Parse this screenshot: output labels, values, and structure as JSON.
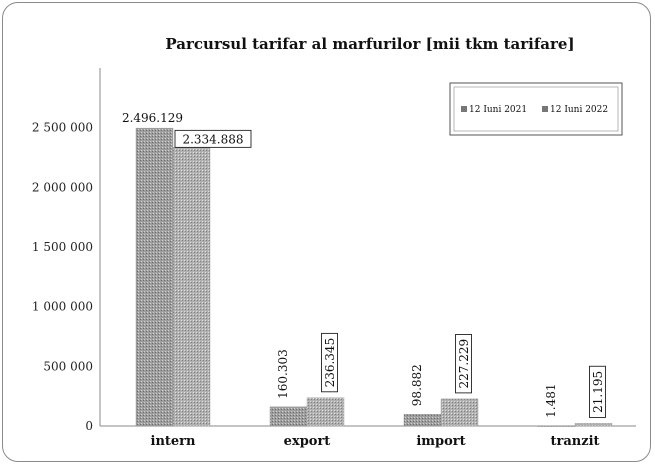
{
  "chart_data": {
    "type": "bar",
    "title": "Parcursul tarifar al marfurilor [mii tkm tarifare]",
    "categories": [
      "intern",
      "export",
      "import",
      "tranzit"
    ],
    "series": [
      {
        "name": "12 Iuni 2021",
        "values": [
          2496129,
          160303,
          98882,
          1481
        ],
        "labels": [
          "2.496.129",
          "160.303",
          "98.882",
          "1.481"
        ],
        "color": "#a8a8a8"
      },
      {
        "name": "12 Iuni 2022",
        "values": [
          2334888,
          236345,
          227229,
          21195
        ],
        "labels": [
          "2.334.888",
          "236.345",
          "227.229",
          "21.195"
        ],
        "color": "#b4b4b4"
      }
    ],
    "y_ticks": [
      0,
      500000,
      1000000,
      1500000,
      2000000,
      2500000
    ],
    "y_tick_labels": [
      "0",
      "500 000",
      "1 000 000",
      "1 500 000",
      "2 000 000",
      "2 500 000"
    ],
    "ylim": [
      0,
      3000000
    ],
    "xlabel": "",
    "ylabel": "",
    "grid": false,
    "legend_position": "top-right"
  }
}
